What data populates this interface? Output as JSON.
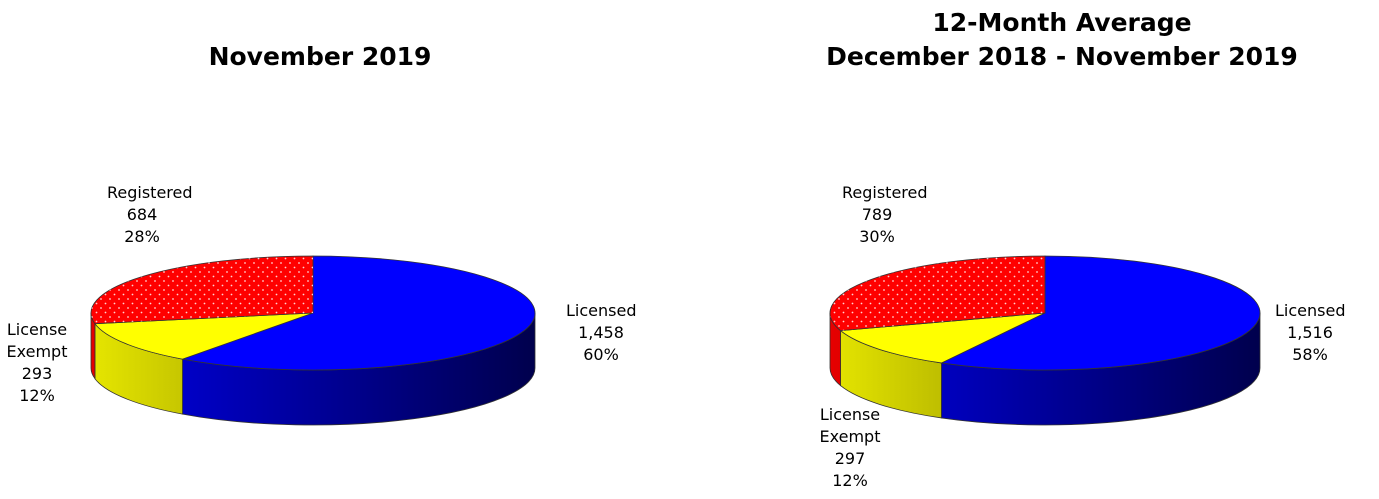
{
  "chart_data": [
    {
      "type": "pie",
      "title": "November 2019",
      "categories": [
        "Licensed",
        "License Exempt",
        "Registered"
      ],
      "values": [
        1458,
        293,
        684
      ],
      "value_labels": [
        "1,458",
        "293",
        "684"
      ],
      "percents": [
        60,
        12,
        28
      ],
      "percent_labels": [
        "60%",
        "12%",
        "28%"
      ],
      "colors": [
        "#0000ff",
        "#ffff00",
        "#ff0000"
      ],
      "dotted": [
        false,
        false,
        true
      ]
    },
    {
      "type": "pie",
      "title": "12-Month Average",
      "subtitle": "December 2018 - November 2019",
      "categories": [
        "Licensed",
        "License Exempt",
        "Registered"
      ],
      "values": [
        1516,
        297,
        789
      ],
      "value_labels": [
        "1,516",
        "297",
        "789"
      ],
      "percents": [
        58,
        12,
        30
      ],
      "percent_labels": [
        "58%",
        "12%",
        "30%"
      ],
      "colors": [
        "#0000ff",
        "#ffff00",
        "#ff0000"
      ],
      "dotted": [
        false,
        false,
        true
      ]
    }
  ]
}
